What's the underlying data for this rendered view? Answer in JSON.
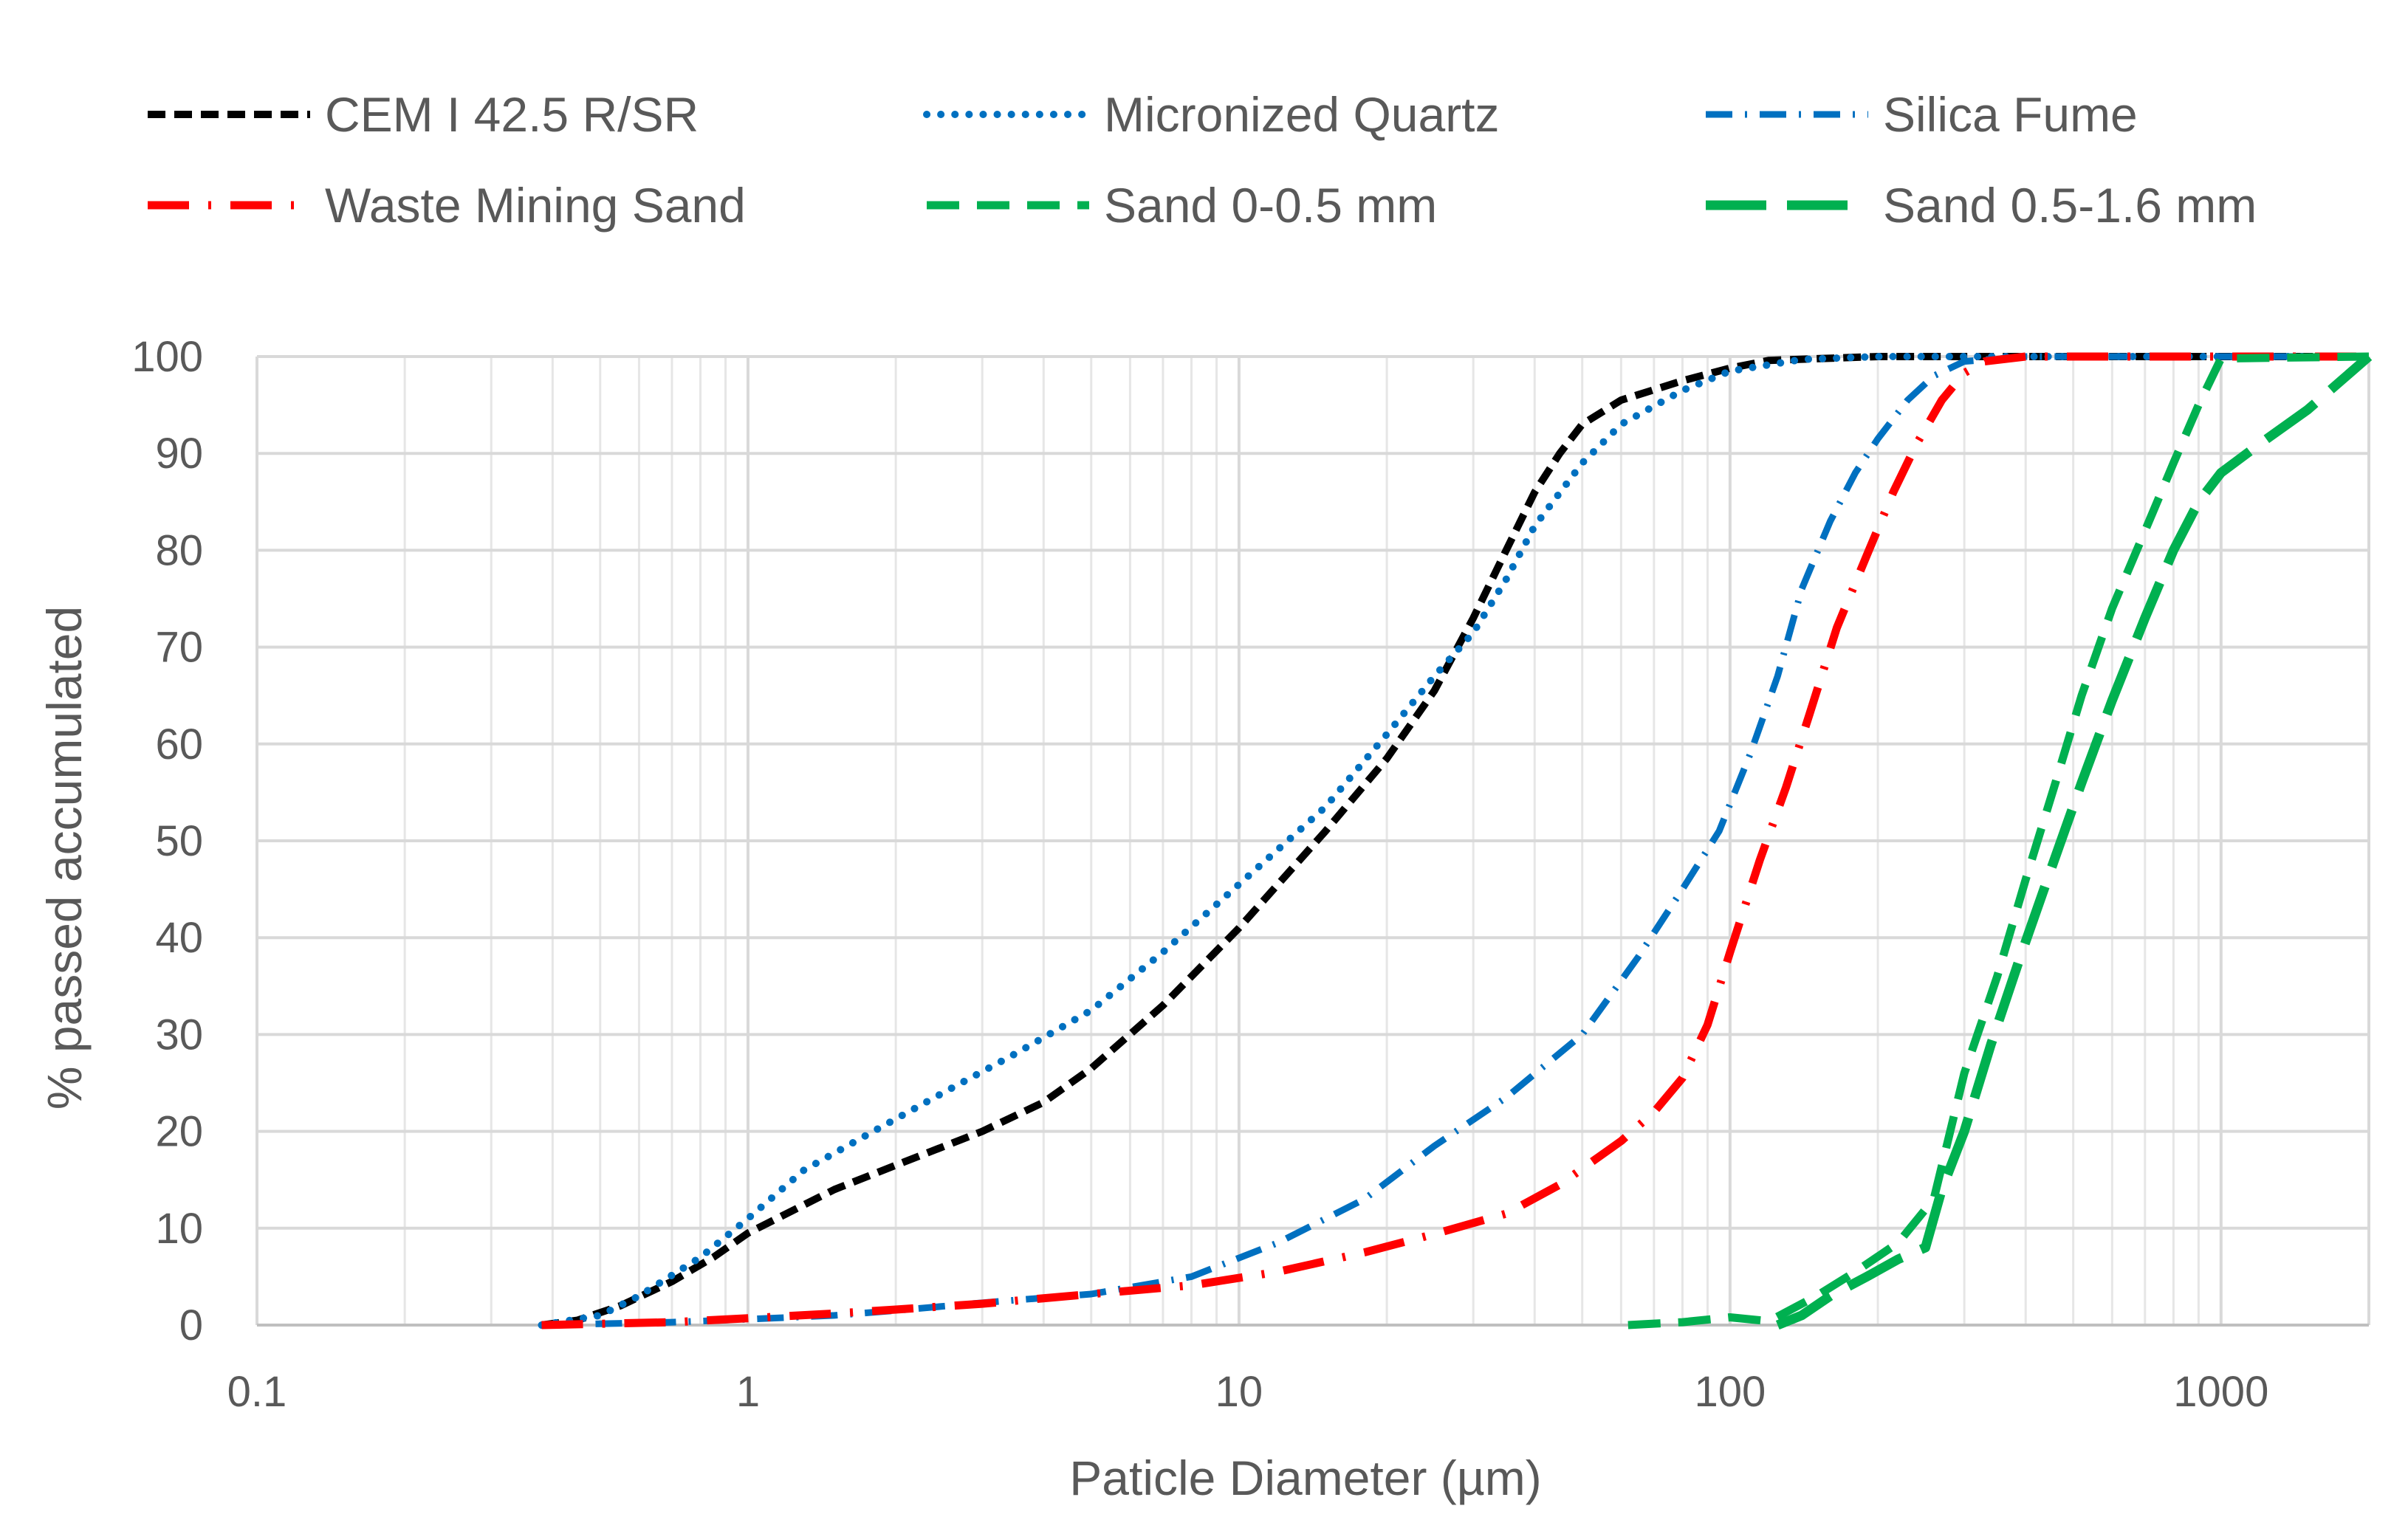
{
  "chart_data": {
    "type": "line",
    "title": "",
    "xlabel": "Paticle Diameter (µm)",
    "ylabel": "% passed accumulated",
    "xscale": "log",
    "xlim": [
      0.1,
      2000
    ],
    "ylim": [
      0,
      100
    ],
    "grid": true,
    "legend_position": "top",
    "x_ticks": [
      {
        "value": 0.1,
        "label": "0.1"
      },
      {
        "value": 1,
        "label": "1"
      },
      {
        "value": 10,
        "label": "10"
      },
      {
        "value": 100,
        "label": "100"
      },
      {
        "value": 1000,
        "label": "1000"
      }
    ],
    "y_ticks": [
      {
        "value": 0,
        "label": "0"
      },
      {
        "value": 10,
        "label": "10"
      },
      {
        "value": 20,
        "label": "20"
      },
      {
        "value": 30,
        "label": "30"
      },
      {
        "value": 40,
        "label": "40"
      },
      {
        "value": 50,
        "label": "50"
      },
      {
        "value": 60,
        "label": "60"
      },
      {
        "value": 70,
        "label": "70"
      },
      {
        "value": 80,
        "label": "80"
      },
      {
        "value": 90,
        "label": "90"
      },
      {
        "value": 100,
        "label": "100"
      }
    ],
    "series": [
      {
        "name": "CEM I 42.5 R/SR",
        "color": "#000000",
        "style": "short-dash",
        "points": [
          [
            0.38,
            0
          ],
          [
            0.45,
            0.5
          ],
          [
            0.55,
            2
          ],
          [
            0.7,
            4.5
          ],
          [
            0.85,
            7
          ],
          [
            1,
            9.5
          ],
          [
            1.5,
            14
          ],
          [
            2,
            16.5
          ],
          [
            3,
            20
          ],
          [
            4,
            23
          ],
          [
            5,
            26.5
          ],
          [
            7,
            33
          ],
          [
            10,
            41
          ],
          [
            15,
            51
          ],
          [
            20,
            58.5
          ],
          [
            25,
            65.5
          ],
          [
            30,
            73
          ],
          [
            35,
            80
          ],
          [
            40,
            86
          ],
          [
            45,
            90
          ],
          [
            50,
            93
          ],
          [
            60,
            95.5
          ],
          [
            80,
            97.5
          ],
          [
            100,
            98.8
          ],
          [
            120,
            99.6
          ],
          [
            200,
            100
          ],
          [
            400,
            100
          ],
          [
            1000,
            100
          ],
          [
            2000,
            100
          ]
        ]
      },
      {
        "name": "Micronized Quartz",
        "color": "#0070C0",
        "style": "dot",
        "points": [
          [
            0.38,
            0
          ],
          [
            0.5,
            1
          ],
          [
            0.6,
            3
          ],
          [
            0.8,
            7
          ],
          [
            1,
            11
          ],
          [
            1.3,
            16
          ],
          [
            1.8,
            20
          ],
          [
            2.5,
            24
          ],
          [
            3.5,
            28
          ],
          [
            5,
            32.5
          ],
          [
            7,
            38.5
          ],
          [
            10,
            45.5
          ],
          [
            15,
            53.5
          ],
          [
            20,
            61
          ],
          [
            25,
            67
          ],
          [
            30,
            71.5
          ],
          [
            35,
            77
          ],
          [
            40,
            82.5
          ],
          [
            50,
            89
          ],
          [
            60,
            93
          ],
          [
            80,
            96.5
          ],
          [
            100,
            98.5
          ],
          [
            140,
            99.7
          ],
          [
            200,
            100
          ],
          [
            400,
            100
          ],
          [
            2000,
            100
          ]
        ]
      },
      {
        "name": "Silica Fume",
        "color": "#0070C0",
        "style": "dash-dot",
        "points": [
          [
            0.38,
            0
          ],
          [
            0.7,
            0.3
          ],
          [
            1,
            0.6
          ],
          [
            1.5,
            1
          ],
          [
            2,
            1.5
          ],
          [
            3,
            2.3
          ],
          [
            5,
            3.2
          ],
          [
            8,
            5
          ],
          [
            12,
            8.5
          ],
          [
            18,
            13
          ],
          [
            25,
            18.5
          ],
          [
            35,
            23.5
          ],
          [
            50,
            30
          ],
          [
            65,
            38
          ],
          [
            80,
            45
          ],
          [
            95,
            51
          ],
          [
            110,
            59
          ],
          [
            125,
            67
          ],
          [
            140,
            76
          ],
          [
            160,
            83
          ],
          [
            180,
            88
          ],
          [
            200,
            91.5
          ],
          [
            230,
            95.5
          ],
          [
            260,
            98
          ],
          [
            300,
            99.5
          ],
          [
            400,
            100
          ],
          [
            2000,
            100
          ]
        ]
      },
      {
        "name": "Waste Mining Sand",
        "color": "#FF0000",
        "style": "long-dash-dot",
        "points": [
          [
            0.38,
            0
          ],
          [
            0.7,
            0.3
          ],
          [
            1,
            0.7
          ],
          [
            1.5,
            1.2
          ],
          [
            2,
            1.6
          ],
          [
            3,
            2.2
          ],
          [
            5,
            3.2
          ],
          [
            8,
            4.1
          ],
          [
            12,
            5.5
          ],
          [
            18,
            7.5
          ],
          [
            25,
            9.4
          ],
          [
            35,
            11.5
          ],
          [
            45,
            14.5
          ],
          [
            60,
            19
          ],
          [
            70,
            22
          ],
          [
            80,
            25.5
          ],
          [
            90,
            31
          ],
          [
            100,
            38.5
          ],
          [
            115,
            48
          ],
          [
            130,
            55.5
          ],
          [
            145,
            63
          ],
          [
            165,
            72
          ],
          [
            190,
            79.5
          ],
          [
            215,
            86
          ],
          [
            240,
            91
          ],
          [
            270,
            95.5
          ],
          [
            300,
            98.3
          ],
          [
            330,
            99.5
          ],
          [
            400,
            100
          ],
          [
            2000,
            100
          ]
        ]
      },
      {
        "name": "Sand 0-0.5 mm",
        "color": "#00B050",
        "style": "medium-dash",
        "points": [
          [
            62,
            0
          ],
          [
            80,
            0.3
          ],
          [
            100,
            0.8
          ],
          [
            120,
            0.4
          ],
          [
            150,
            3
          ],
          [
            180,
            5.5
          ],
          [
            220,
            8.5
          ],
          [
            260,
            13
          ],
          [
            300,
            26
          ],
          [
            350,
            36
          ],
          [
            400,
            46
          ],
          [
            460,
            56
          ],
          [
            520,
            65
          ],
          [
            600,
            74
          ],
          [
            700,
            82
          ],
          [
            800,
            89
          ],
          [
            900,
            95
          ],
          [
            1000,
            99.8
          ],
          [
            2000,
            100
          ]
        ]
      },
      {
        "name": "Sand 0.5-1.6 mm",
        "color": "#00B050",
        "style": "long-dash",
        "points": [
          [
            125,
            0
          ],
          [
            140,
            1
          ],
          [
            160,
            3
          ],
          [
            190,
            5
          ],
          [
            220,
            6.8
          ],
          [
            250,
            8
          ],
          [
            270,
            14
          ],
          [
            300,
            20
          ],
          [
            340,
            29
          ],
          [
            390,
            38
          ],
          [
            450,
            47
          ],
          [
            520,
            56
          ],
          [
            600,
            64.5
          ],
          [
            700,
            73
          ],
          [
            800,
            80
          ],
          [
            900,
            85
          ],
          [
            1000,
            88
          ],
          [
            1200,
            91
          ],
          [
            1500,
            94.5
          ],
          [
            2000,
            100
          ]
        ]
      }
    ]
  }
}
